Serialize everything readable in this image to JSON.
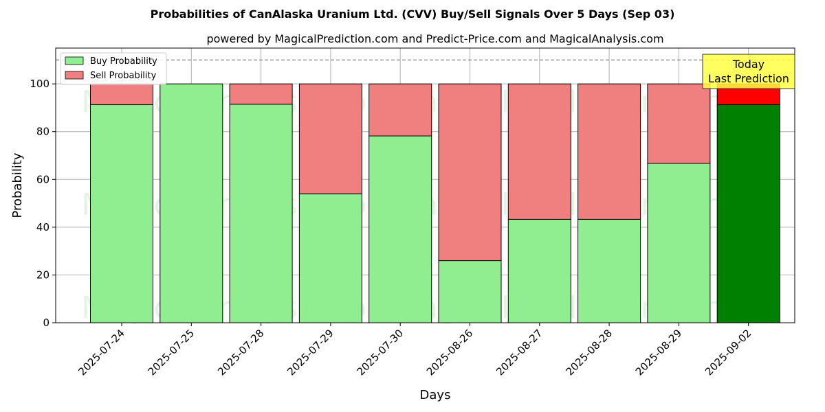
{
  "chart_data": {
    "type": "bar",
    "stacked": true,
    "title": "Probabilities of CanAlaska Uranium Ltd. (CVV) Buy/Sell Signals Over 5 Days (Sep 03)",
    "subtitle": "powered by MagicalPrediction.com and Predict-Price.com and MagicalAnalysis.com",
    "xlabel": "Days",
    "ylabel": "Probability",
    "ylim": [
      0,
      115
    ],
    "yticks": [
      "0",
      "20",
      "40",
      "60",
      "80",
      "100"
    ],
    "reference_line": 110,
    "grid": true,
    "legend_position": "top-left",
    "categories": [
      "2025-07-24",
      "2025-07-25",
      "2025-07-28",
      "2025-07-29",
      "2025-07-30",
      "2025-08-26",
      "2025-08-27",
      "2025-08-28",
      "2025-08-29",
      "2025-09-02"
    ],
    "series": [
      {
        "name": "Buy Probability",
        "color": "#90ee90",
        "highlight_color": "#008000",
        "values": [
          91.3,
          100,
          91.5,
          54.0,
          78.2,
          26.0,
          43.3,
          43.3,
          66.7,
          91.3
        ]
      },
      {
        "name": "Sell Probability",
        "color": "#f08080",
        "highlight_color": "#ff0000",
        "values": [
          8.7,
          0,
          8.5,
          46.0,
          21.8,
          74.0,
          56.7,
          56.7,
          33.3,
          8.7
        ]
      }
    ],
    "highlight_index": 9,
    "annotation": {
      "lines": [
        "Today",
        "Last Prediction"
      ],
      "box_color": "#ffff44"
    },
    "watermarks": [
      "MagicalAnalysis.com",
      "MagicalPrediction.com"
    ]
  }
}
